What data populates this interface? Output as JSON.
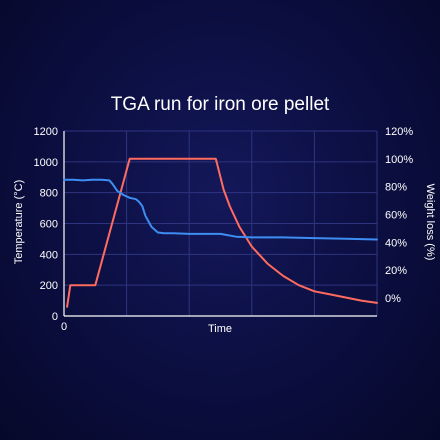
{
  "chart_data": {
    "type": "line",
    "title": "TGA run for iron ore pellet",
    "xlabel": "Time",
    "ylabel_left": "Temperature (°C)",
    "ylabel_right": "Weight loss (%)",
    "x_ticks": [
      "0"
    ],
    "y_left_ticks": [
      "0",
      "200",
      "400",
      "600",
      "800",
      "1000",
      "1200"
    ],
    "y_right_ticks": [
      "0%",
      "20%",
      "40%",
      "60%",
      "80%",
      "100%",
      "120%"
    ],
    "xlim": [
      0,
      100
    ],
    "ylim_left": [
      0,
      1200
    ],
    "ylim_right": [
      -13,
      120
    ],
    "grid": true,
    "colors": {
      "temperature": "#ff6b5e",
      "weight": "#3d8df2",
      "grid": "#2e3480"
    },
    "series": [
      {
        "axis": "left",
        "color": "#ff6b5e",
        "x": [
          1,
          2,
          3,
          10,
          21,
          22,
          48.5,
          50,
          51,
          53,
          56,
          60,
          65,
          70,
          75,
          80,
          85,
          90,
          95,
          100
        ],
        "y": [
          60,
          200,
          200,
          200,
          1020,
          1020,
          1020,
          900,
          820,
          710,
          580,
          450,
          340,
          260,
          200,
          160,
          140,
          120,
          100,
          85
        ]
      },
      {
        "axis": "right",
        "color": "#3d8df2",
        "x": [
          0,
          3,
          6,
          9,
          12,
          14.5,
          15.5,
          17,
          19,
          21,
          23,
          24,
          25,
          26,
          28,
          30,
          32,
          35,
          40,
          45,
          50,
          55,
          60,
          70,
          80,
          90,
          100
        ],
        "y": [
          85,
          85,
          84.5,
          85,
          85,
          84.5,
          82,
          77,
          74,
          72,
          71,
          69,
          66,
          59,
          51,
          47,
          46.5,
          46.5,
          46,
          46,
          46,
          44,
          43.5,
          43.5,
          43,
          42.5,
          42
        ]
      }
    ]
  }
}
